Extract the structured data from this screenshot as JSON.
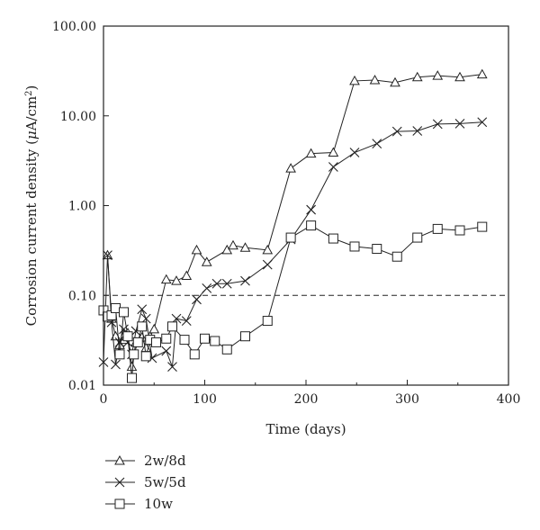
{
  "chart_data": {
    "type": "line",
    "xlabel": "Time (days)",
    "ylabel_prefix": "Corrosion current density (",
    "ylabel_unit_greek": "μ",
    "ylabel_unit_rest": "A/cm",
    "ylabel_sup": "2",
    "ylabel_suffix": ")",
    "xlim": [
      0,
      400
    ],
    "ylim": [
      0.01,
      100
    ],
    "yscale": "log",
    "x_ticks": [
      0,
      100,
      200,
      300,
      400
    ],
    "x_tick_labels": [
      "0",
      "100",
      "200",
      "300",
      "400"
    ],
    "y_ticks": [
      0.01,
      0.1,
      1,
      10,
      100
    ],
    "y_tick_labels": [
      "0.01",
      "0.10",
      "1.00",
      "10.00",
      "100.00"
    ],
    "threshold": 0.1,
    "threshold_style": "dashed",
    "legend_position": "bottom-left",
    "series": [
      {
        "name": "2w/8d",
        "marker": "triangle",
        "points": [
          [
            4,
            0.28
          ],
          [
            8,
            0.055
          ],
          [
            12,
            0.035
          ],
          [
            16,
            0.028
          ],
          [
            20,
            0.032
          ],
          [
            24,
            0.038
          ],
          [
            28,
            0.016
          ],
          [
            32,
            0.03
          ],
          [
            38,
            0.034
          ],
          [
            42,
            0.026
          ],
          [
            46,
            0.035
          ],
          [
            50,
            0.042
          ],
          [
            62,
            0.15
          ],
          [
            72,
            0.145
          ],
          [
            82,
            0.165
          ],
          [
            92,
            0.32
          ],
          [
            102,
            0.235
          ],
          [
            122,
            0.32
          ],
          [
            128,
            0.36
          ],
          [
            140,
            0.34
          ],
          [
            162,
            0.32
          ],
          [
            185,
            2.6
          ],
          [
            205,
            3.8
          ],
          [
            227,
            3.9
          ],
          [
            248,
            24.5
          ],
          [
            268,
            25
          ],
          [
            288,
            23.5
          ],
          [
            310,
            27
          ],
          [
            330,
            28
          ],
          [
            352,
            27
          ],
          [
            374,
            29
          ]
        ]
      },
      {
        "name": "5w/5d",
        "marker": "x",
        "points": [
          [
            0,
            0.018
          ],
          [
            4,
            0.28
          ],
          [
            8,
            0.05
          ],
          [
            12,
            0.017
          ],
          [
            16,
            0.03
          ],
          [
            20,
            0.042
          ],
          [
            24,
            0.03
          ],
          [
            28,
            0.022
          ],
          [
            32,
            0.04
          ],
          [
            38,
            0.07
          ],
          [
            42,
            0.055
          ],
          [
            48,
            0.02
          ],
          [
            62,
            0.024
          ],
          [
            68,
            0.016
          ],
          [
            72,
            0.055
          ],
          [
            82,
            0.052
          ],
          [
            92,
            0.09
          ],
          [
            102,
            0.12
          ],
          [
            112,
            0.135
          ],
          [
            122,
            0.135
          ],
          [
            140,
            0.145
          ],
          [
            162,
            0.22
          ],
          [
            185,
            0.42
          ],
          [
            205,
            0.9
          ],
          [
            227,
            2.7
          ],
          [
            248,
            3.9
          ],
          [
            270,
            4.9
          ],
          [
            290,
            6.7
          ],
          [
            310,
            6.8
          ],
          [
            330,
            8.1
          ],
          [
            352,
            8.2
          ],
          [
            374,
            8.5
          ]
        ]
      },
      {
        "name": "10w",
        "marker": "square",
        "points": [
          [
            0,
            0.068
          ],
          [
            4,
            0.058
          ],
          [
            8,
            0.06
          ],
          [
            12,
            0.072
          ],
          [
            16,
            0.022
          ],
          [
            20,
            0.065
          ],
          [
            24,
            0.035
          ],
          [
            28,
            0.012
          ],
          [
            30,
            0.022
          ],
          [
            34,
            0.03
          ],
          [
            38,
            0.045
          ],
          [
            42,
            0.021
          ],
          [
            46,
            0.032
          ],
          [
            52,
            0.03
          ],
          [
            62,
            0.033
          ],
          [
            68,
            0.045
          ],
          [
            80,
            0.032
          ],
          [
            90,
            0.022
          ],
          [
            100,
            0.033
          ],
          [
            110,
            0.031
          ],
          [
            122,
            0.025
          ],
          [
            140,
            0.035
          ],
          [
            162,
            0.052
          ],
          [
            185,
            0.44
          ],
          [
            205,
            0.6
          ],
          [
            227,
            0.43
          ],
          [
            248,
            0.35
          ],
          [
            270,
            0.33
          ],
          [
            290,
            0.27
          ],
          [
            310,
            0.44
          ],
          [
            330,
            0.55
          ],
          [
            352,
            0.53
          ],
          [
            374,
            0.58
          ]
        ]
      }
    ]
  }
}
